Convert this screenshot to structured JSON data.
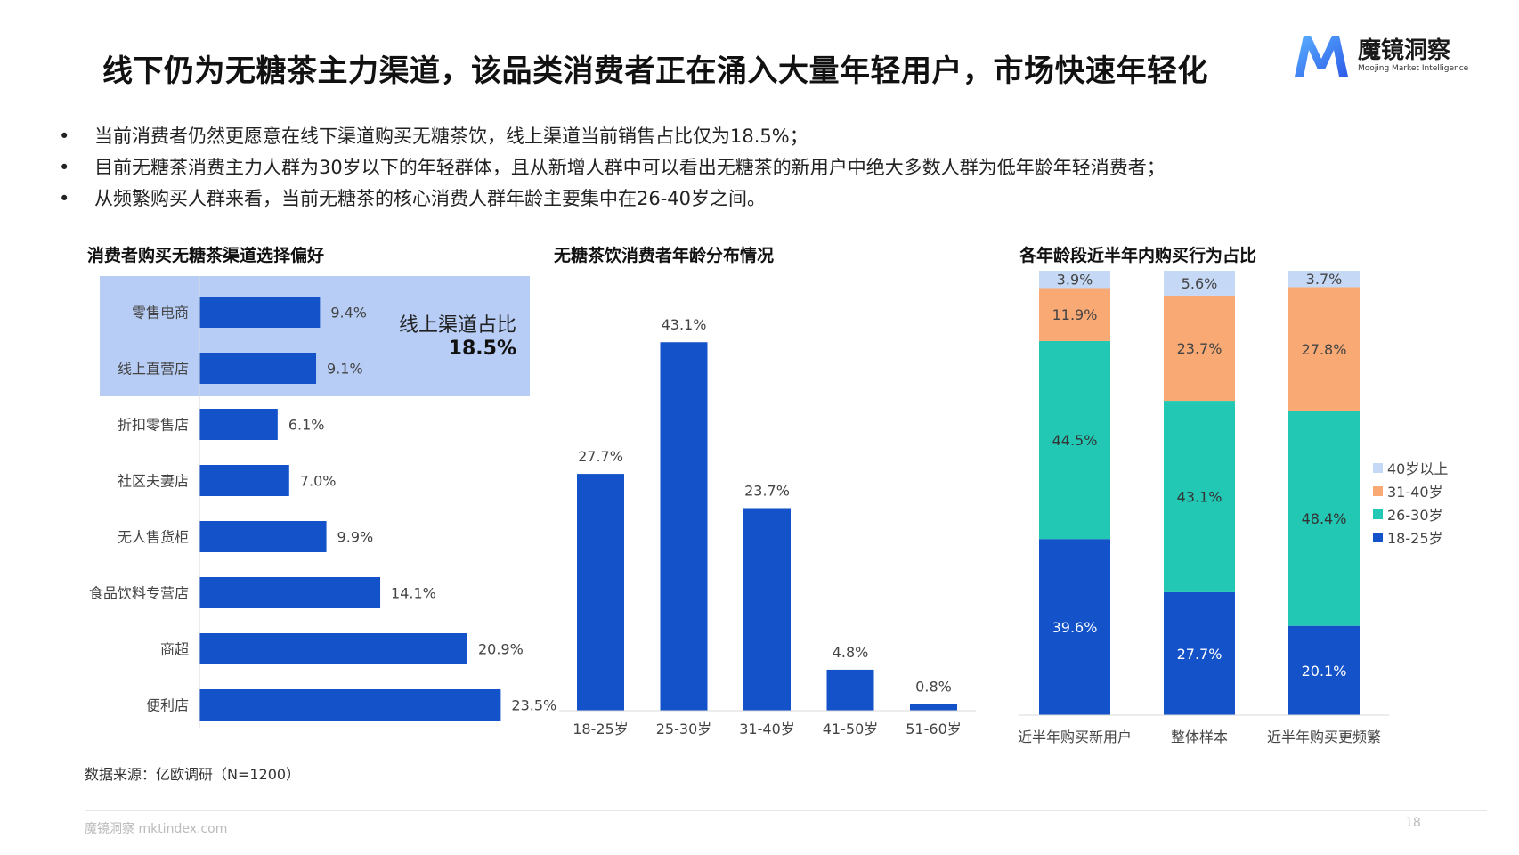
{
  "header": {
    "title": "线下仍为无糖茶主力渠道，该品类消费者正在涌入大量年轻用户，市场快速年轻化",
    "logo_name": "魔镜洞察",
    "logo_subtitle": "Moojing Market Intelligence"
  },
  "bullets": [
    "当前消费者仍然更愿意在线下渠道购买无糖茶饮，线上渠道当前销售占比仅为18.5%；",
    "目前无糖茶消费主力人群为30岁以下的年轻群体，且从新增人群中可以看出无糖茶的新用户中绝大多数人群为低年龄年轻消费者；",
    "从频繁购买人群来看，当前无糖茶的核心消费人群年龄主要集中在26-40岁之间。"
  ],
  "bullet_marker": "•",
  "source": "数据来源：亿欧调研（N=1200）",
  "footer": {
    "brand": "魔镜洞察 mktindex.com",
    "page": "18"
  },
  "colors": {
    "bar": "#1352C8",
    "highlight": "#B7CDF6",
    "teal": "#22C8B4",
    "orange": "#F9A974",
    "light_blue": "#C5D8F5"
  },
  "chart_data": [
    {
      "type": "bar",
      "orientation": "horizontal",
      "title": "消费者购买无糖茶渠道选择偏好",
      "categories": [
        "零售电商",
        "线上直营店",
        "折扣零售店",
        "社区夫妻店",
        "无人售货柜",
        "食品饮料专营店",
        "商超",
        "便利店"
      ],
      "values": [
        9.4,
        9.1,
        6.1,
        7.0,
        9.9,
        14.1,
        20.9,
        23.5
      ],
      "value_labels": [
        "9.4%",
        "9.1%",
        "6.1%",
        "7.0%",
        "9.9%",
        "14.1%",
        "20.9%",
        "23.5%"
      ],
      "xlim": [
        0,
        25
      ],
      "annotation": {
        "label": "线上渠道占比",
        "value": "18.5%",
        "highlight_categories": [
          "零售电商",
          "线上直营店"
        ]
      }
    },
    {
      "type": "bar",
      "title": "无糖茶饮消费者年龄分布情况",
      "categories": [
        "18-25岁",
        "25-30岁",
        "31-40岁",
        "41-50岁",
        "51-60岁"
      ],
      "values": [
        27.7,
        43.1,
        23.7,
        4.8,
        0.8
      ],
      "value_labels": [
        "27.7%",
        "43.1%",
        "23.7%",
        "4.8%",
        "0.8%"
      ],
      "ylim": [
        0,
        50
      ]
    },
    {
      "type": "bar",
      "stacked": true,
      "title": "各年龄段近半年内购买行为占比",
      "categories": [
        "近半年购买新用户",
        "整体样本",
        "近半年购买更频繁"
      ],
      "series": [
        {
          "name": "18-25岁",
          "values": [
            39.6,
            27.7,
            20.1
          ],
          "labels": [
            "39.6%",
            "27.7%",
            "20.1%"
          ],
          "color": "#1352C8"
        },
        {
          "name": "26-30岁",
          "values": [
            44.5,
            43.1,
            48.4
          ],
          "labels": [
            "44.5%",
            "43.1%",
            "48.4%"
          ],
          "color": "#22C8B4"
        },
        {
          "name": "31-40岁",
          "values": [
            11.9,
            23.7,
            27.8
          ],
          "labels": [
            "11.9%",
            "23.7%",
            "27.8%"
          ],
          "color": "#F9A974"
        },
        {
          "name": "40岁以上",
          "values": [
            3.9,
            5.6,
            3.7
          ],
          "labels": [
            "3.9%",
            "5.6%",
            "3.7%"
          ],
          "color": "#C5D8F5"
        }
      ],
      "legend_order": [
        "40岁以上",
        "31-40岁",
        "26-30岁",
        "18-25岁"
      ],
      "legend": "right"
    }
  ]
}
